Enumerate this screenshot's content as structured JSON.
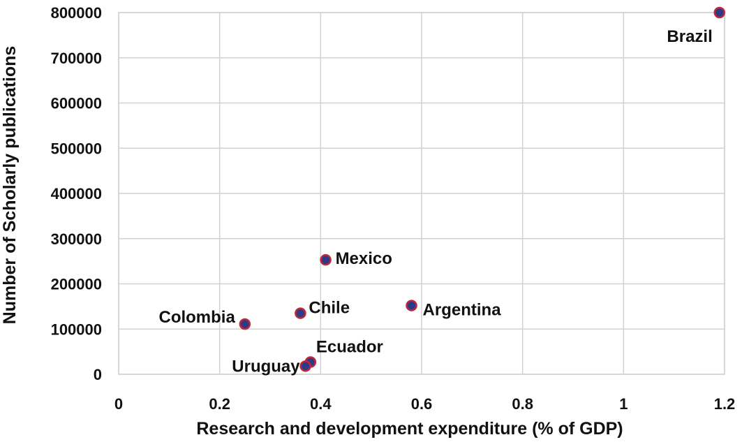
{
  "chart_data": {
    "type": "scatter",
    "xlabel": "Research and development expenditure (% of GDP)",
    "ylabel": "Number of Scholarly publications",
    "xlim": [
      0,
      1.2
    ],
    "ylim": [
      0,
      800000
    ],
    "xticks": [
      "0",
      "0.2",
      "0.4",
      "0.6",
      "0.8",
      "1",
      "1.2"
    ],
    "yticks": [
      "0",
      "100000",
      "200000",
      "300000",
      "400000",
      "500000",
      "600000",
      "700000",
      "800000"
    ],
    "grid": true,
    "marker_fill": "#2e3a87",
    "marker_edge": "#c0283a",
    "points": [
      {
        "label": "Brazil",
        "x": 1.19,
        "y": 800000
      },
      {
        "label": "Mexico",
        "x": 0.41,
        "y": 253000
      },
      {
        "label": "Chile",
        "x": 0.36,
        "y": 135000
      },
      {
        "label": "Argentina",
        "x": 0.58,
        "y": 152000
      },
      {
        "label": "Colombia",
        "x": 0.25,
        "y": 111000
      },
      {
        "label": "Ecuador",
        "x": 0.38,
        "y": 27000
      },
      {
        "label": "Uruguay",
        "x": 0.37,
        "y": 18000
      }
    ]
  }
}
